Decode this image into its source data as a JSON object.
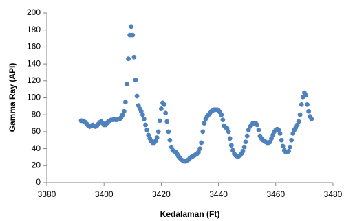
{
  "chart_data": {
    "type": "scatter",
    "xlabel": "Kedalaman (Ft)",
    "ylabel": "Gamma Ray (API)",
    "xlim": [
      3380,
      3480
    ],
    "xticks": [
      3380,
      3400,
      3420,
      3440,
      3460,
      3480
    ],
    "ylim": [
      0,
      200
    ],
    "yticks": [
      0,
      20,
      40,
      60,
      80,
      100,
      120,
      140,
      160,
      180,
      200
    ],
    "grid": false,
    "series": [
      {
        "color": "#4f81bd",
        "x": [
          3392,
          3392.5,
          3393,
          3393.5,
          3394,
          3394.5,
          3395,
          3395.5,
          3396,
          3396.5,
          3397,
          3397.5,
          3398,
          3398.5,
          3399,
          3399.5,
          3400,
          3400.5,
          3401,
          3401.5,
          3402,
          3402.5,
          3403,
          3403.5,
          3404,
          3404.5,
          3405,
          3405.5,
          3406,
          3406.5,
          3407,
          3407.5,
          3408,
          3408.5,
          3409,
          3409.5,
          3410,
          3410.5,
          3411,
          3411.5,
          3412,
          3412.5,
          3413,
          3413.5,
          3414,
          3414.5,
          3415,
          3415.5,
          3416,
          3416.5,
          3417,
          3417.5,
          3418,
          3418.5,
          3419,
          3419.5,
          3420,
          3420.5,
          3421,
          3421.5,
          3422,
          3422.5,
          3423,
          3423.5,
          3424,
          3424.5,
          3425,
          3425.5,
          3426,
          3426.5,
          3427,
          3427.5,
          3428,
          3428.5,
          3429,
          3429.5,
          3430,
          3430.5,
          3431,
          3431.5,
          3432,
          3432.5,
          3433,
          3433.5,
          3434,
          3434.5,
          3435,
          3435.5,
          3436,
          3436.5,
          3437,
          3437.5,
          3438,
          3438.5,
          3439,
          3439.5,
          3440,
          3440.5,
          3441,
          3441.5,
          3442,
          3442.5,
          3443,
          3443.5,
          3444,
          3444.5,
          3445,
          3445.5,
          3446,
          3446.5,
          3447,
          3447.5,
          3448,
          3448.5,
          3449,
          3449.5,
          3450,
          3450.5,
          3451,
          3451.5,
          3452,
          3452.5,
          3453,
          3453.5,
          3454,
          3454.5,
          3455,
          3455.5,
          3456,
          3456.5,
          3457,
          3457.5,
          3458,
          3458.5,
          3459,
          3459.5,
          3460,
          3460.5,
          3461,
          3461.5,
          3462,
          3462.5,
          3463,
          3463.5,
          3464,
          3464.5,
          3465,
          3465.5,
          3466,
          3466.5,
          3467,
          3467.5,
          3468,
          3468.5,
          3469,
          3469.5,
          3470,
          3470.5,
          3471,
          3471.5,
          3472,
          3472.5
        ],
        "values": [
          73,
          73,
          72,
          71,
          69,
          67,
          66,
          67,
          68,
          67,
          66,
          67,
          69,
          71,
          72,
          70,
          68,
          68,
          70,
          72,
          73,
          74,
          74,
          75,
          74,
          74,
          75,
          75,
          77,
          80,
          84,
          95,
          116,
          146,
          174,
          184,
          174,
          148,
          121,
          102,
          91,
          87,
          84,
          80,
          75,
          68,
          62,
          56,
          52,
          49,
          47,
          47,
          49,
          53,
          60,
          73,
          87,
          94,
          92,
          82,
          72,
          60,
          50,
          42,
          38,
          37,
          36,
          34,
          31,
          29,
          27,
          26,
          25,
          25,
          26,
          27,
          29,
          30,
          31,
          32,
          33,
          34,
          36,
          40,
          47,
          60,
          70,
          75,
          78,
          80,
          82,
          84,
          85,
          86,
          86,
          86,
          85,
          83,
          80,
          74,
          67,
          65,
          64,
          60,
          52,
          44,
          38,
          34,
          32,
          31,
          31,
          32,
          34,
          37,
          42,
          48,
          55,
          62,
          66,
          68,
          70,
          70,
          70,
          68,
          62,
          55,
          52,
          50,
          49,
          48,
          47,
          47,
          48,
          52,
          56,
          60,
          62,
          63,
          62,
          58,
          50,
          43,
          38,
          36,
          36,
          37,
          42,
          50,
          58,
          62,
          65,
          68,
          72,
          80,
          92,
          101,
          106,
          103,
          92,
          84,
          78,
          75
        ]
      }
    ]
  }
}
